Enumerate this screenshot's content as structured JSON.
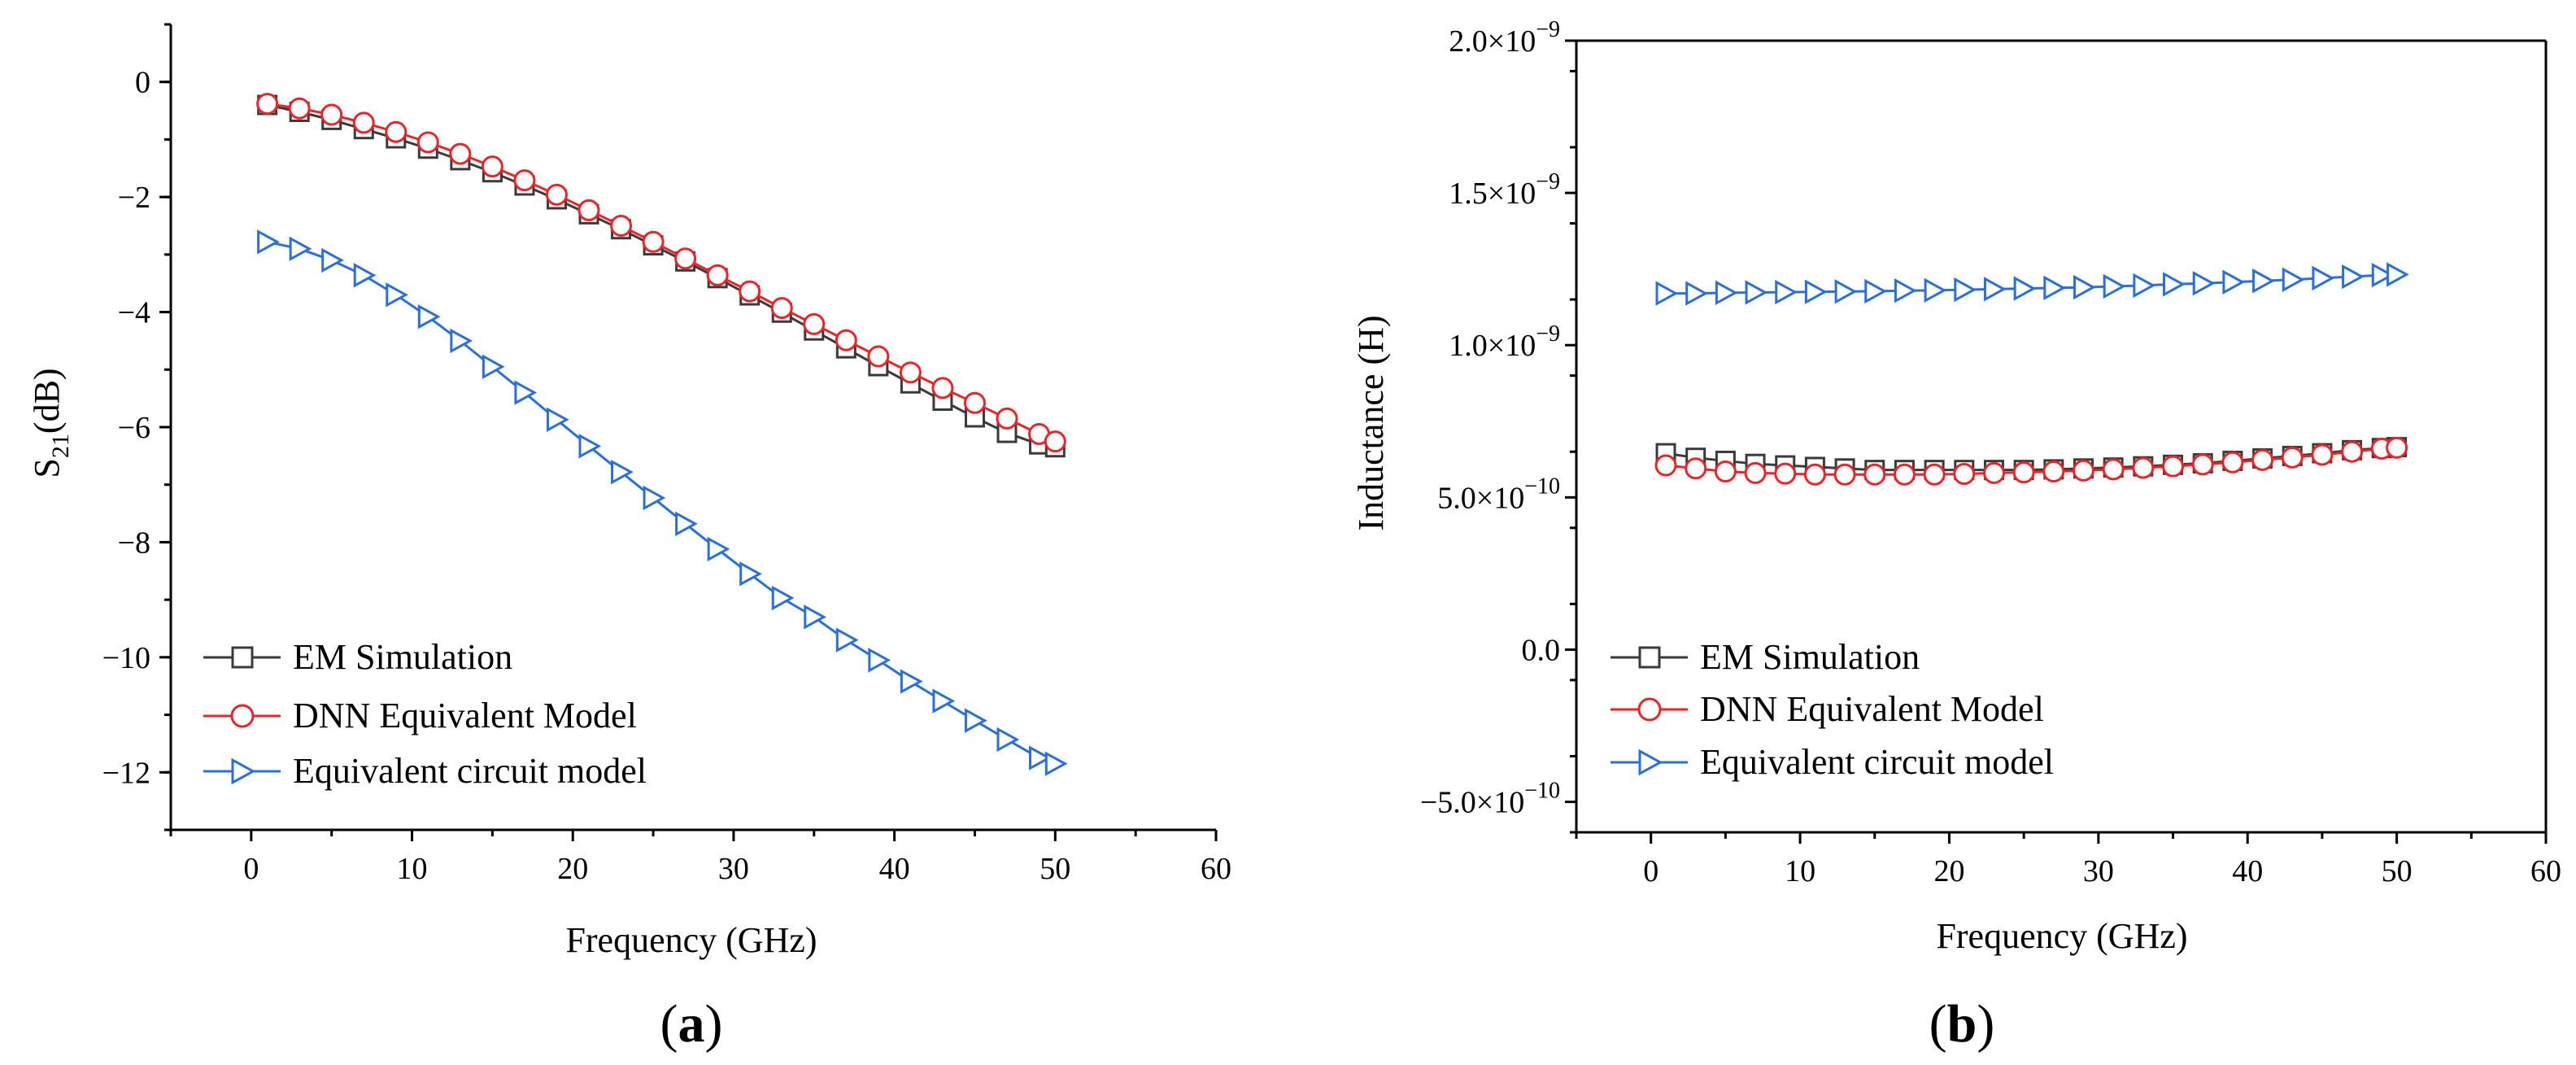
{
  "figure": {
    "panels": [
      {
        "label_open": "(",
        "label_letter": "a",
        "label_close": ")"
      },
      {
        "label_open": "(",
        "label_letter": "b",
        "label_close": ")"
      }
    ]
  },
  "chart_data": [
    {
      "type": "line",
      "panel": "a",
      "title": "",
      "xlabel": "Frequency (GHz)",
      "ylabel_main": "S",
      "ylabel_sub": "21",
      "ylabel_tail": "(dB)",
      "xlim": [
        -5,
        60
      ],
      "ylim": [
        -13,
        1
      ],
      "xticks": [
        0,
        10,
        20,
        30,
        40,
        50,
        60
      ],
      "xtick_labels": [
        "0",
        "10",
        "20",
        "30",
        "40",
        "50",
        "60"
      ],
      "yticks": [
        0,
        -2,
        -4,
        -6,
        -8,
        -10,
        -12
      ],
      "ytick_labels": [
        "0",
        "−2",
        "−4",
        "−6",
        "−8",
        "−10",
        "−12"
      ],
      "x": [
        1,
        3,
        5,
        7,
        9,
        11,
        13,
        15,
        17,
        19,
        21,
        23,
        25,
        27,
        29,
        31,
        33,
        35,
        37,
        39,
        41,
        43,
        45,
        47,
        49,
        50
      ],
      "legend_position": "bottom-left",
      "series": [
        {
          "name": "EM Simulation",
          "marker": "square",
          "color": "#3a3a3a",
          "values": [
            -0.4,
            -0.52,
            -0.66,
            -0.82,
            -0.98,
            -1.16,
            -1.36,
            -1.57,
            -1.8,
            -2.04,
            -2.3,
            -2.56,
            -2.84,
            -3.12,
            -3.41,
            -3.71,
            -4.01,
            -4.32,
            -4.63,
            -4.94,
            -5.24,
            -5.54,
            -5.83,
            -6.1,
            -6.3,
            -6.35
          ]
        },
        {
          "name": "DNN Equivalent Model",
          "marker": "circle",
          "color": "#e8262a",
          "values": [
            -0.38,
            -0.46,
            -0.57,
            -0.71,
            -0.87,
            -1.05,
            -1.25,
            -1.47,
            -1.71,
            -1.96,
            -2.23,
            -2.5,
            -2.78,
            -3.07,
            -3.36,
            -3.64,
            -3.93,
            -4.21,
            -4.49,
            -4.77,
            -5.05,
            -5.32,
            -5.58,
            -5.85,
            -6.12,
            -6.25
          ]
        },
        {
          "name": "Equivalent circuit model",
          "marker": "triangle-right",
          "color": "#2a70d8",
          "values": [
            -2.78,
            -2.9,
            -3.1,
            -3.36,
            -3.7,
            -4.08,
            -4.5,
            -4.95,
            -5.4,
            -5.87,
            -6.33,
            -6.78,
            -7.23,
            -7.68,
            -8.12,
            -8.55,
            -8.97,
            -9.3,
            -9.7,
            -10.05,
            -10.42,
            -10.76,
            -11.1,
            -11.43,
            -11.75,
            -11.85
          ]
        }
      ]
    },
    {
      "type": "line",
      "panel": "b",
      "title": "",
      "xlabel": "Frequency (GHz)",
      "ylabel": "Inductance (H)",
      "xlim": [
        -5,
        60
      ],
      "ylim": [
        -6e-10,
        2e-09
      ],
      "xticks": [
        0,
        10,
        20,
        30,
        40,
        50,
        60
      ],
      "xtick_labels": [
        "0",
        "10",
        "20",
        "30",
        "40",
        "50",
        "60"
      ],
      "yticks": [
        2e-09,
        1.5e-09,
        1e-09,
        5e-10,
        0,
        -5e-10
      ],
      "ytick_labels": [
        {
          "mantissa": "2.0×10",
          "exp": "−9"
        },
        {
          "mantissa": "1.5×10",
          "exp": "−9"
        },
        {
          "mantissa": "1.0×10",
          "exp": "−9"
        },
        {
          "mantissa": "5.0×10",
          "exp": "−10"
        },
        {
          "mantissa": "0.0",
          "exp": ""
        },
        {
          "mantissa": "−5.0×10",
          "exp": "−10"
        }
      ],
      "x": [
        1,
        3,
        5,
        7,
        9,
        11,
        13,
        15,
        17,
        19,
        21,
        23,
        25,
        27,
        29,
        31,
        33,
        35,
        37,
        39,
        41,
        43,
        45,
        47,
        49,
        50
      ],
      "legend_position": "bottom-left",
      "series": [
        {
          "name": "EM Simulation",
          "marker": "square",
          "color": "#3a3a3a",
          "values": [
            6.45e-10,
            6.3e-10,
            6.2e-10,
            6.1e-10,
            6.05e-10,
            6e-10,
            5.95e-10,
            5.9e-10,
            5.9e-10,
            5.9e-10,
            5.9e-10,
            5.9e-10,
            5.9e-10,
            5.92e-10,
            5.95e-10,
            5.98e-10,
            6.02e-10,
            6.07e-10,
            6.12e-10,
            6.2e-10,
            6.28e-10,
            6.36e-10,
            6.45e-10,
            6.55e-10,
            6.62e-10,
            6.65e-10
          ]
        },
        {
          "name": "DNN Equivalent Model",
          "marker": "circle",
          "color": "#e8262a",
          "values": [
            6.05e-10,
            5.95e-10,
            5.85e-10,
            5.8e-10,
            5.78e-10,
            5.75e-10,
            5.75e-10,
            5.75e-10,
            5.75e-10,
            5.75e-10,
            5.77e-10,
            5.8e-10,
            5.82e-10,
            5.85e-10,
            5.88e-10,
            5.92e-10,
            5.97e-10,
            6.02e-10,
            6.08e-10,
            6.15e-10,
            6.23e-10,
            6.31e-10,
            6.4e-10,
            6.5e-10,
            6.6e-10,
            6.63e-10
          ]
        },
        {
          "name": "Equivalent circuit model",
          "marker": "triangle-right",
          "color": "#2a70d8",
          "values": [
            1.17e-09,
            1.17e-09,
            1.172e-09,
            1.173e-09,
            1.174e-09,
            1.175e-09,
            1.176e-09,
            1.177e-09,
            1.179e-09,
            1.18e-09,
            1.182e-09,
            1.184e-09,
            1.186e-09,
            1.188e-09,
            1.19e-09,
            1.193e-09,
            1.196e-09,
            1.2e-09,
            1.203e-09,
            1.207e-09,
            1.211e-09,
            1.215e-09,
            1.22e-09,
            1.225e-09,
            1.23e-09,
            1.232e-09
          ]
        }
      ]
    }
  ]
}
